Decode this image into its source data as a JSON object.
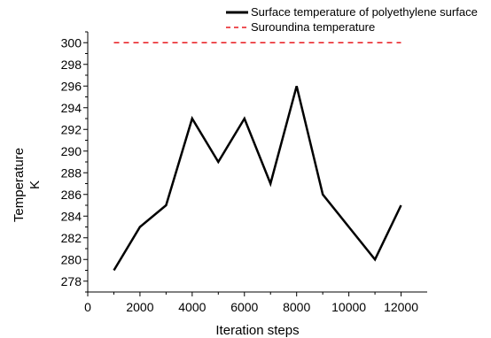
{
  "chart_data": {
    "type": "line",
    "title": "",
    "xlabel": "Iteration steps",
    "ylabel_line1": "Temperature",
    "ylabel_line2": "K",
    "xlim": [
      0,
      13000
    ],
    "ylim": [
      277,
      301
    ],
    "x_ticks": [
      "0",
      "2000",
      "4000",
      "6000",
      "8000",
      "10000",
      "12000"
    ],
    "y_ticks": [
      "278",
      "280",
      "282",
      "284",
      "286",
      "288",
      "290",
      "292",
      "294",
      "296",
      "298",
      "300"
    ],
    "grid": false,
    "legend_position": "top-right",
    "series": [
      {
        "name": "Surface temperature of polyethylene surface",
        "color": "#000000",
        "style": "solid",
        "x": [
          1000,
          2000,
          3000,
          4000,
          5000,
          6000,
          7000,
          8000,
          9000,
          10000,
          11000,
          12000
        ],
        "y": [
          279,
          283,
          285,
          293,
          289,
          293,
          287,
          296,
          286,
          283,
          280,
          285
        ]
      },
      {
        "name": "Suroundina temperature",
        "color": "#e8191e",
        "style": "dashed",
        "x": [
          1000,
          12000
        ],
        "y": [
          300,
          300
        ]
      }
    ]
  }
}
